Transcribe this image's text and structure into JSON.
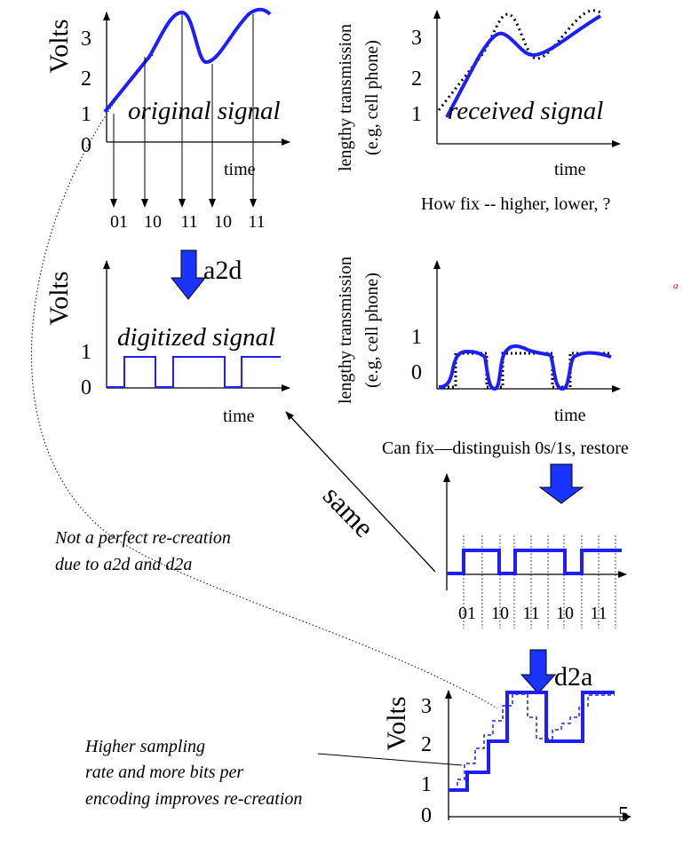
{
  "colors": {
    "signal": "#1d1dff",
    "arrow_fill": "#1a33ff",
    "ink": "#000000",
    "accent_red": "#d40000"
  },
  "panel_original": {
    "ylabel": "Volts",
    "y_ticks": [
      "0",
      "1",
      "2",
      "3"
    ],
    "xlabel": "time",
    "caption": "original signal",
    "sample_codes": [
      "01",
      "10",
      "11",
      "10",
      "11"
    ]
  },
  "panel_received": {
    "ylabel_line1": "lengthy transmission",
    "ylabel_line2": "(e.g, cell phone)",
    "y_ticks": [
      "1",
      "2",
      "3"
    ],
    "xlabel": "time",
    "caption": "received signal",
    "note": "How fix -- higher, lower, ?"
  },
  "a2d_label": "a2d",
  "panel_digitized": {
    "ylabel": "Volts",
    "y_ticks": [
      "0",
      "1"
    ],
    "xlabel": "time",
    "caption": "digitized signal"
  },
  "stray_mark": "a",
  "panel_received_digital": {
    "ylabel_line1": "lengthy transmission",
    "ylabel_line2": "(e.g, cell phone)",
    "y_ticks": [
      "0",
      "1"
    ],
    "xlabel": "time",
    "note": "Can fix—distinguish 0s/1s, restore"
  },
  "same_label": "same",
  "panel_restored": {
    "codes": [
      "01",
      "10",
      "11",
      "10",
      "11"
    ]
  },
  "note_imperfect": {
    "line1": "Not a perfect re-creation",
    "line2": "due to a2d and d2a"
  },
  "d2a_label": "d2a",
  "panel_reconstructed": {
    "ylabel": "Volts",
    "y_ticks": [
      "0",
      "1",
      "2",
      "3"
    ],
    "x_tick": "5"
  },
  "note_sampling": {
    "line1": "Higher sampling",
    "line2": "rate and more bits per",
    "line3": "encoding improves re-creation"
  }
}
